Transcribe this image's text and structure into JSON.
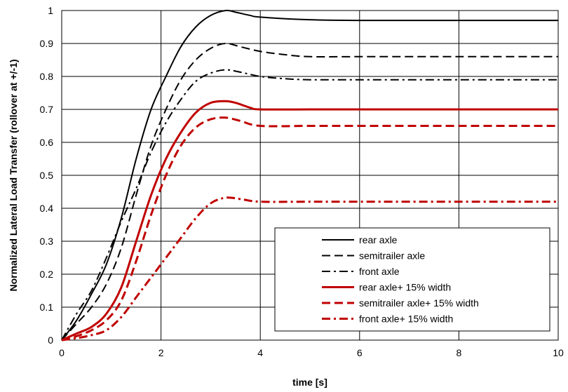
{
  "chart_data": {
    "type": "line",
    "title": "",
    "xlabel": "time [s]",
    "ylabel": "Normalized Lateral Load Transfer (rollover at +/-1)",
    "xlim": [
      0,
      10
    ],
    "ylim": [
      0,
      1
    ],
    "x_ticks": [
      "0",
      "2",
      "4",
      "6",
      "8",
      "10"
    ],
    "y_ticks": [
      "0",
      "0.1",
      "0.2",
      "0.3",
      "0.4",
      "0.5",
      "0.6",
      "0.7",
      "0.8",
      "0.9",
      "1"
    ],
    "grid": true,
    "legend_position": "bottom-right",
    "series": [
      {
        "name": "rear axle",
        "color": "#000000",
        "dash": "solid",
        "x": [
          0,
          0.3,
          0.6,
          0.9,
          1.2,
          1.5,
          1.8,
          2.1,
          2.4,
          2.7,
          3.0,
          3.3,
          3.5,
          3.8,
          4.0,
          5.0,
          6.0,
          8.0,
          10.0
        ],
        "y": [
          0,
          0.06,
          0.14,
          0.23,
          0.37,
          0.55,
          0.7,
          0.8,
          0.89,
          0.95,
          0.985,
          1.0,
          0.995,
          0.985,
          0.98,
          0.972,
          0.97,
          0.97,
          0.97
        ]
      },
      {
        "name": "semitrailer axle",
        "color": "#000000",
        "dash": "dashed",
        "x": [
          0,
          0.3,
          0.6,
          0.9,
          1.2,
          1.5,
          1.8,
          2.1,
          2.4,
          2.7,
          3.0,
          3.3,
          3.6,
          4.0,
          4.5,
          5.0,
          6.0,
          8.0,
          10.0
        ],
        "y": [
          0,
          0.05,
          0.1,
          0.17,
          0.28,
          0.44,
          0.59,
          0.7,
          0.79,
          0.85,
          0.885,
          0.9,
          0.89,
          0.876,
          0.866,
          0.86,
          0.86,
          0.86,
          0.86
        ]
      },
      {
        "name": "front axle",
        "color": "#000000",
        "dash": "dashdot",
        "x": [
          0,
          0.3,
          0.6,
          0.9,
          1.2,
          1.5,
          1.8,
          2.1,
          2.4,
          2.7,
          3.0,
          3.3,
          3.6,
          4.0,
          4.5,
          5.0,
          6.0,
          8.0,
          10.0
        ],
        "y": [
          0,
          0.08,
          0.15,
          0.25,
          0.36,
          0.46,
          0.57,
          0.66,
          0.73,
          0.785,
          0.81,
          0.82,
          0.813,
          0.8,
          0.793,
          0.79,
          0.79,
          0.79,
          0.79
        ]
      },
      {
        "name": "rear axle+ 15% width",
        "color": "#c00000",
        "dash": "solid",
        "x": [
          0,
          0.3,
          0.6,
          0.9,
          1.2,
          1.5,
          1.8,
          2.1,
          2.4,
          2.7,
          3.0,
          3.3,
          3.5,
          3.8,
          4.0,
          5.0,
          6.0,
          8.0,
          10.0
        ],
        "y": [
          0,
          0.02,
          0.04,
          0.08,
          0.16,
          0.3,
          0.44,
          0.55,
          0.63,
          0.69,
          0.72,
          0.725,
          0.72,
          0.705,
          0.7,
          0.7,
          0.7,
          0.7,
          0.7
        ]
      },
      {
        "name": "semitrailer axle+ 15% width",
        "color": "#c00000",
        "dash": "dashed",
        "x": [
          0,
          0.3,
          0.6,
          0.9,
          1.2,
          1.5,
          1.8,
          2.1,
          2.4,
          2.7,
          3.0,
          3.3,
          3.6,
          4.0,
          5.0,
          6.0,
          8.0,
          10.0
        ],
        "y": [
          0,
          0.012,
          0.03,
          0.06,
          0.12,
          0.24,
          0.38,
          0.5,
          0.59,
          0.645,
          0.67,
          0.675,
          0.665,
          0.65,
          0.65,
          0.65,
          0.65,
          0.65
        ]
      },
      {
        "name": "front axle+ 15% width",
        "color": "#c00000",
        "dash": "dashdot",
        "x": [
          0,
          0.3,
          0.6,
          0.9,
          1.2,
          1.5,
          1.8,
          2.1,
          2.4,
          2.7,
          3.0,
          3.3,
          3.6,
          4.0,
          5.0,
          6.0,
          8.0,
          10.0
        ],
        "y": [
          0,
          0.006,
          0.015,
          0.03,
          0.07,
          0.13,
          0.19,
          0.25,
          0.31,
          0.37,
          0.415,
          0.432,
          0.428,
          0.42,
          0.42,
          0.42,
          0.42,
          0.42
        ]
      }
    ]
  }
}
